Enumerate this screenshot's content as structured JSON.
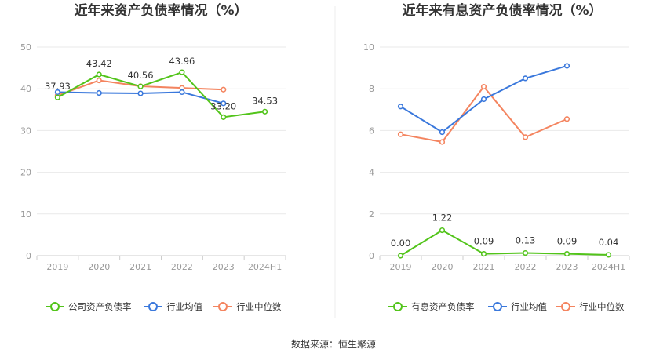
{
  "source_text": "数据来源：恒生聚源",
  "colors": {
    "company": "#52c41a",
    "industry_avg": "#3a78dc",
    "industry_median": "#f4845f",
    "grid": "#e9e9e9",
    "axis": "#cccccc"
  },
  "chart_data": [
    {
      "type": "line",
      "title": "近年来资产负债率情况（%）",
      "xlabel": "",
      "ylabel": "",
      "categories": [
        "2019",
        "2020",
        "2021",
        "2022",
        "2023",
        "2024H1"
      ],
      "ylim": [
        0,
        50
      ],
      "yticks": [
        0,
        10,
        20,
        30,
        40,
        50
      ],
      "grid": true,
      "legend_position": "bottom",
      "series": [
        {
          "name": "公司资产负债率",
          "color": "#52c41a",
          "values": [
            37.93,
            43.42,
            40.56,
            43.96,
            33.2,
            34.53
          ],
          "labels": [
            "37.93",
            "43.42",
            "40.56",
            "43.96",
            "33.20",
            "34.53"
          ]
        },
        {
          "name": "行业均值",
          "color": "#3a78dc",
          "values": [
            39.2,
            39.0,
            38.9,
            39.2,
            36.5,
            null
          ]
        },
        {
          "name": "行业中位数",
          "color": "#f4845f",
          "values": [
            38.4,
            42.0,
            40.6,
            40.2,
            39.8,
            null
          ]
        }
      ]
    },
    {
      "type": "line",
      "title": "近年来有息资产负债率情况（%）",
      "xlabel": "",
      "ylabel": "",
      "categories": [
        "2019",
        "2020",
        "2021",
        "2022",
        "2023",
        "2024H1"
      ],
      "ylim": [
        0,
        10
      ],
      "yticks": [
        0,
        2,
        4,
        6,
        8,
        10
      ],
      "grid": true,
      "legend_position": "bottom",
      "series": [
        {
          "name": "有息资产负债率",
          "color": "#52c41a",
          "values": [
            0.0,
            1.22,
            0.09,
            0.13,
            0.09,
            0.04
          ],
          "labels": [
            "0.00",
            "1.22",
            "0.09",
            "0.13",
            "0.09",
            "0.04"
          ]
        },
        {
          "name": "行业均值",
          "color": "#3a78dc",
          "values": [
            7.15,
            5.92,
            7.5,
            8.5,
            9.1,
            null
          ]
        },
        {
          "name": "行业中位数",
          "color": "#f4845f",
          "values": [
            5.82,
            5.45,
            8.1,
            5.68,
            6.55,
            null
          ]
        }
      ]
    }
  ]
}
